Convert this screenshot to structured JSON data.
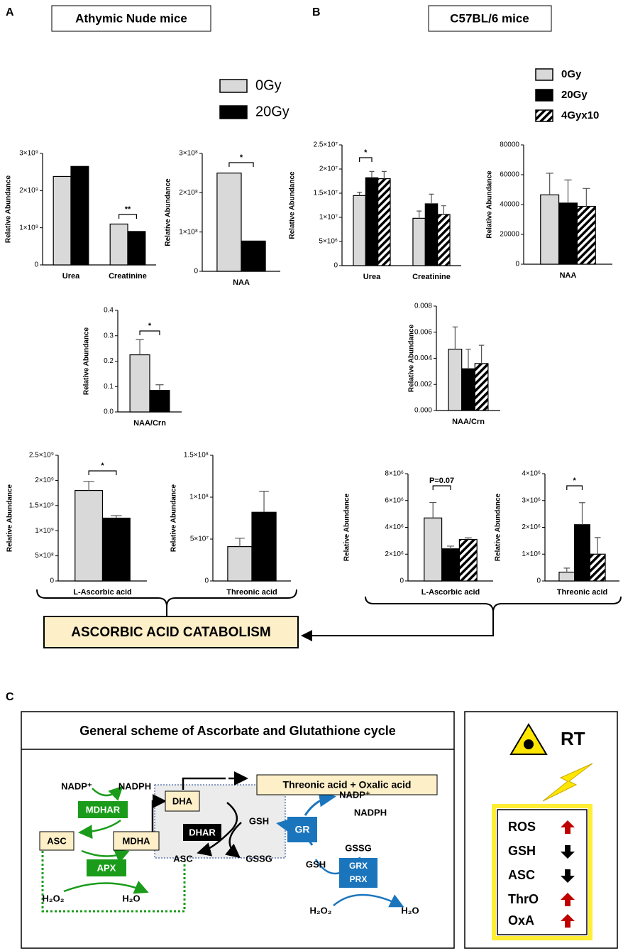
{
  "panels": {
    "labels": [
      "A",
      "B",
      "C"
    ],
    "headers": [
      "Athymic Nude mice",
      "C57BL/6 mice"
    ],
    "conclusion": "ASCORBIC ACID CATABOLISM"
  },
  "chart_data": [
    {
      "type": "bar",
      "ylabel": "Relative Abundance",
      "categories": [
        "Urea",
        "Creatinine"
      ],
      "series": [
        {
          "name": "0Gy",
          "color": "#d9d9d9",
          "values": [
            2380000000,
            1100000000
          ]
        },
        {
          "name": "20Gy",
          "color": "#000000",
          "values": [
            2650000000,
            900000000
          ]
        }
      ],
      "ylim": [
        0,
        3000000000
      ],
      "yticks": [
        0,
        {
          "value": 1000000000,
          "label": "1×10⁹"
        },
        {
          "value": 2000000000,
          "label": "2×10⁹"
        },
        {
          "value": 3000000000,
          "label": "3×10⁹"
        }
      ],
      "annotations": [
        {
          "text": "**"
        }
      ]
    },
    {
      "type": "bar",
      "ylabel": "Relative Abundance",
      "categories": [
        "NAA"
      ],
      "series": [
        {
          "name": "0Gy",
          "color": "#d9d9d9",
          "values": [
            250000000
          ]
        },
        {
          "name": "20Gy",
          "color": "#000000",
          "values": [
            77000000
          ]
        }
      ],
      "ylim": [
        0,
        300000000
      ],
      "yticks": [
        0,
        {
          "value": 100000000,
          "label": "1×10⁸"
        },
        {
          "value": 200000000,
          "label": "2×10⁸"
        },
        {
          "value": 300000000,
          "label": "3×10⁸"
        }
      ],
      "annotations": [
        {
          "text": "*"
        }
      ]
    },
    {
      "type": "bar",
      "ylabel": "Relative Abundance",
      "categories": [
        "NAA/Crn"
      ],
      "series": [
        {
          "name": "0Gy",
          "color": "#d9d9d9",
          "values": [
            0.225
          ],
          "errors": [
            0.06
          ]
        },
        {
          "name": "20Gy",
          "color": "#000000",
          "values": [
            0.085
          ],
          "errors": [
            0.022
          ]
        }
      ],
      "ylim": [
        0,
        0.4
      ],
      "yticks": [
        {
          "value": 0,
          "label": "0.0"
        },
        0.1,
        0.2,
        0.3,
        0.4
      ],
      "annotations": [
        {
          "text": "*"
        }
      ]
    },
    {
      "type": "bar",
      "ylabel": "Relative Abundance",
      "categories": [
        "L-Ascorbic acid"
      ],
      "series": [
        {
          "name": "0Gy",
          "color": "#d9d9d9",
          "values": [
            1800000000
          ],
          "errors": [
            180000000
          ]
        },
        {
          "name": "20Gy",
          "color": "#000000",
          "values": [
            1250000000
          ],
          "errors": [
            50000000
          ]
        }
      ],
      "ylim": [
        0,
        2500000000
      ],
      "yticks": [
        0,
        {
          "value": 500000000,
          "label": "5×10⁸"
        },
        {
          "value": 1000000000,
          "label": "1×10⁹"
        },
        {
          "value": 1500000000,
          "label": "1.5×10⁹"
        },
        {
          "value": 2000000000,
          "label": "2×10⁹"
        },
        {
          "value": 2500000000,
          "label": "2.5×10⁹"
        }
      ],
      "annotations": [
        {
          "text": "*"
        }
      ]
    },
    {
      "type": "bar",
      "ylabel": "Relative Abundance",
      "categories": [
        "Threonic acid"
      ],
      "series": [
        {
          "name": "0Gy",
          "color": "#d9d9d9",
          "values": [
            41000000
          ],
          "errors": [
            10000000
          ]
        },
        {
          "name": "20Gy",
          "color": "#000000",
          "values": [
            82000000
          ],
          "errors": [
            25000000
          ]
        }
      ],
      "ylim": [
        0,
        150000000
      ],
      "yticks": [
        0,
        {
          "value": 50000000,
          "label": "5×10⁷"
        },
        {
          "value": 100000000,
          "label": "1×10⁸"
        },
        {
          "value": 150000000,
          "label": "1.5×10⁸"
        }
      ],
      "annotations": []
    },
    {
      "type": "bar",
      "ylabel": "Relative Abundance",
      "categories": [
        "Urea",
        "Creatinine"
      ],
      "series": [
        {
          "name": "0Gy",
          "color": "#d9d9d9",
          "values": [
            14500000,
            9800000
          ],
          "errors": [
            700000,
            1500000
          ]
        },
        {
          "name": "20Gy",
          "color": "#000000",
          "values": [
            18200000,
            12800000
          ],
          "errors": [
            1300000,
            2000000
          ]
        },
        {
          "name": "4Gyx10",
          "color": "#ffffff",
          "hatch": true,
          "values": [
            18000000,
            10600000
          ],
          "errors": [
            1500000,
            1800000
          ]
        }
      ],
      "ylim": [
        0,
        25000000
      ],
      "yticks": [
        0,
        {
          "value": 5000000,
          "label": "5×10⁶"
        },
        {
          "value": 10000000,
          "label": "1×10⁷"
        },
        {
          "value": 15000000,
          "label": "1.5×10⁷"
        },
        {
          "value": 20000000,
          "label": "2×10⁷"
        },
        {
          "value": 25000000,
          "label": "2.5×10⁷"
        }
      ],
      "annotations": [
        {
          "text": "*"
        }
      ]
    },
    {
      "type": "bar",
      "ylabel": "Relative Abundance",
      "categories": [
        "NAA"
      ],
      "series": [
        {
          "name": "0Gy",
          "color": "#d9d9d9",
          "values": [
            46500
          ],
          "errors": [
            14500
          ]
        },
        {
          "name": "20Gy",
          "color": "#000000",
          "values": [
            41000
          ],
          "errors": [
            15500
          ]
        },
        {
          "name": "4Gyx10",
          "color": "#ffffff",
          "hatch": true,
          "values": [
            38800
          ],
          "errors": [
            12000
          ]
        }
      ],
      "ylim": [
        0,
        80000
      ],
      "yticks": [
        0,
        20000,
        40000,
        60000,
        80000
      ],
      "annotations": []
    },
    {
      "type": "bar",
      "ylabel": "Relative Abundance",
      "categories": [
        "NAA/Crn"
      ],
      "series": [
        {
          "name": "0Gy",
          "color": "#d9d9d9",
          "values": [
            0.0047
          ],
          "errors": [
            0.0017
          ]
        },
        {
          "name": "20Gy",
          "color": "#000000",
          "values": [
            0.0032
          ],
          "errors": [
            0.0015
          ]
        },
        {
          "name": "4Gyx10",
          "color": "#ffffff",
          "hatch": true,
          "values": [
            0.0036
          ],
          "errors": [
            0.0014
          ]
        }
      ],
      "ylim": [
        0,
        0.008
      ],
      "yticks": [
        {
          "value": 0,
          "label": "0.000"
        },
        {
          "value": 0.002,
          "label": "0.002"
        },
        {
          "value": 0.004,
          "label": "0.004"
        },
        {
          "value": 0.006,
          "label": "0.006"
        },
        {
          "value": 0.008,
          "label": "0.008"
        }
      ],
      "annotations": []
    },
    {
      "type": "bar",
      "ylabel": "Relative Abundance",
      "categories": [
        "L-Ascorbic acid"
      ],
      "series": [
        {
          "name": "0Gy",
          "color": "#d9d9d9",
          "values": [
            4700000
          ],
          "errors": [
            1150000
          ]
        },
        {
          "name": "20Gy",
          "color": "#000000",
          "values": [
            2400000
          ],
          "errors": [
            200000
          ]
        },
        {
          "name": "4Gyx10",
          "color": "#ffffff",
          "hatch": true,
          "values": [
            3100000
          ],
          "errors": [
            120000
          ]
        }
      ],
      "ylim": [
        0,
        8000000
      ],
      "yticks": [
        0,
        {
          "value": 2000000,
          "label": "2×10⁶"
        },
        {
          "value": 4000000,
          "label": "4×10⁶"
        },
        {
          "value": 6000000,
          "label": "6×10⁶"
        },
        {
          "value": 8000000,
          "label": "8×10⁶"
        }
      ],
      "annotations": [
        {
          "text": "P=0.07"
        }
      ]
    },
    {
      "type": "bar",
      "ylabel": "Relative Abundance",
      "categories": [
        "Threonic acid"
      ],
      "series": [
        {
          "name": "0Gy",
          "color": "#d9d9d9",
          "values": [
            330000
          ],
          "errors": [
            150000
          ]
        },
        {
          "name": "20Gy",
          "color": "#000000",
          "values": [
            2100000
          ],
          "errors": [
            820000
          ]
        },
        {
          "name": "4Gyx10",
          "color": "#ffffff",
          "hatch": true,
          "values": [
            1000000
          ],
          "errors": [
            620000
          ]
        }
      ],
      "ylim": [
        0,
        4000000
      ],
      "yticks": [
        0,
        {
          "value": 1000000,
          "label": "1×10⁶"
        },
        {
          "value": 2000000,
          "label": "2×10⁶"
        },
        {
          "value": 3000000,
          "label": "3×10⁶"
        },
        {
          "value": 4000000,
          "label": "4×10⁶"
        }
      ],
      "annotations": [
        {
          "text": "*"
        }
      ]
    }
  ],
  "diagram": {
    "title": "General scheme of Ascorbate and Glutathione cycle",
    "products": "Threonic acid + Oxalic acid",
    "enzymes": [
      "MDHAR",
      "APX",
      "DHAR",
      "GR",
      "GRX",
      "PRX"
    ],
    "metabolites": [
      "NADP⁺",
      "NADPH",
      "ASC",
      "MDHA",
      "H₂O₂",
      "H₂O",
      "DHA",
      "GSH",
      "ASC",
      "GSSG",
      "NADP⁺",
      "NADPH",
      "GSH",
      "GSSG",
      "H₂O₂",
      "H₂O"
    ]
  },
  "summary": {
    "trigger": "RT",
    "items": [
      {
        "name": "ROS",
        "direction": "up"
      },
      {
        "name": "GSH",
        "direction": "down"
      },
      {
        "name": "ASC",
        "direction": "down"
      },
      {
        "name": "ThrO",
        "direction": "up"
      },
      {
        "name": "OxA",
        "direction": "up"
      }
    ]
  }
}
